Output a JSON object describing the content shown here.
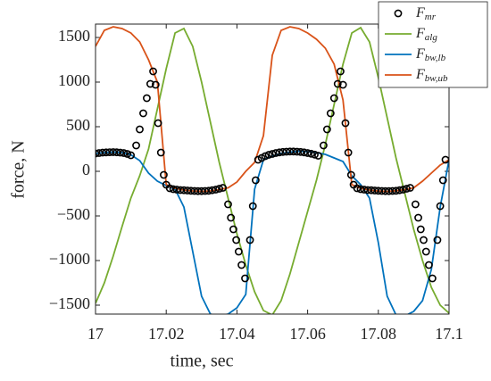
{
  "chart_data": {
    "type": "line",
    "xlabel": "time, sec",
    "ylabel": "force, N",
    "xlim": [
      17,
      17.1
    ],
    "ylim": [
      -1600,
      1650
    ],
    "xticks": [
      17,
      17.02,
      17.04,
      17.06,
      17.08,
      17.1
    ],
    "yticks": [
      {
        "value": -1500,
        "label": "−1500"
      },
      {
        "value": -1000,
        "label": "−1000"
      },
      {
        "value": -500,
        "label": "−500"
      },
      0,
      500,
      1000,
      1500
    ],
    "grid": false,
    "legend": "northeast",
    "x": [
      17,
      17.0025,
      17.005,
      17.0075,
      17.01,
      17.0125,
      17.015,
      17.0175,
      17.02,
      17.0225,
      17.025,
      17.0275,
      17.03,
      17.0325,
      17.035,
      17.0375,
      17.04,
      17.0425,
      17.045,
      17.0475,
      17.05,
      17.0525,
      17.055,
      17.0575,
      17.06,
      17.0625,
      17.065,
      17.0675,
      17.07,
      17.0725,
      17.075,
      17.0775,
      17.08,
      17.0825,
      17.085,
      17.0875,
      17.09,
      17.0925,
      17.095,
      17.0975,
      17.1
    ],
    "series": [
      {
        "name": "F_mr",
        "color": "#000000",
        "marker": "o",
        "x": [
          17,
          17.001,
          17.002,
          17.003,
          17.004,
          17.005,
          17.006,
          17.007,
          17.008,
          17.009,
          17.01,
          17.0115,
          17.0125,
          17.0135,
          17.0145,
          17.0155,
          17.0163,
          17.017,
          17.0177,
          17.0185,
          17.0193,
          17.02,
          17.021,
          17.022,
          17.023,
          17.024,
          17.025,
          17.026,
          17.027,
          17.028,
          17.029,
          17.03,
          17.031,
          17.032,
          17.033,
          17.034,
          17.035,
          17.036,
          17.0375,
          17.0383,
          17.039,
          17.0398,
          17.0405,
          17.0413,
          17.0423,
          17.0437,
          17.0445,
          17.0453,
          17.046,
          17.047,
          17.048,
          17.049,
          17.05,
          17.051,
          17.052,
          17.053,
          17.054,
          17.055,
          17.056,
          17.057,
          17.058,
          17.059,
          17.06,
          17.061,
          17.062,
          17.063,
          17.0645,
          17.0655,
          17.0665,
          17.0675,
          17.0685,
          17.0693,
          17.07,
          17.0707,
          17.0715,
          17.0723,
          17.073,
          17.074,
          17.075,
          17.076,
          17.077,
          17.078,
          17.079,
          17.08,
          17.081,
          17.082,
          17.083,
          17.084,
          17.085,
          17.086,
          17.087,
          17.088,
          17.089,
          17.0905,
          17.0913,
          17.092,
          17.0928,
          17.0935,
          17.0943,
          17.0953,
          17.0967,
          17.0975,
          17.0983,
          17.099
        ],
        "values": [
          200,
          205,
          210,
          212,
          214,
          215,
          213,
          210,
          205,
          195,
          180,
          290,
          470,
          650,
          820,
          980,
          1120,
          970,
          540,
          210,
          -40,
          -150,
          -190,
          -200,
          -205,
          -210,
          -212,
          -215,
          -218,
          -220,
          -222,
          -222,
          -220,
          -218,
          -212,
          -205,
          -195,
          -185,
          -370,
          -520,
          -650,
          -770,
          -900,
          -1050,
          -1200,
          -770,
          -390,
          -100,
          130,
          150,
          170,
          185,
          195,
          205,
          212,
          217,
          220,
          222,
          222,
          220,
          217,
          212,
          205,
          197,
          187,
          175,
          290,
          470,
          650,
          820,
          980,
          1120,
          970,
          540,
          210,
          -40,
          -150,
          -190,
          -200,
          -205,
          -210,
          -212,
          -215,
          -218,
          -220,
          -222,
          -222,
          -220,
          -218,
          -212,
          -205,
          -195,
          -185,
          -370,
          -520,
          -650,
          -770,
          -900,
          -1050,
          -1200,
          -770,
          -390,
          -100,
          130
        ]
      },
      {
        "name": "F_alg",
        "color": "#77ac30",
        "values": [
          -1480,
          -1250,
          -950,
          -620,
          -300,
          -50,
          250,
          700,
          1150,
          1550,
          1600,
          1400,
          1000,
          550,
          100,
          -300,
          -700,
          -1050,
          -1350,
          -1560,
          -1610,
          -1450,
          -1150,
          -800,
          -450,
          -100,
          300,
          750,
          1200,
          1550,
          1610,
          1450,
          1050,
          600,
          150,
          -250,
          -650,
          -1000,
          -1300,
          -1500,
          -1590
        ]
      },
      {
        "name": "F_bw,lb",
        "color": "#0072bd",
        "values": [
          200,
          210,
          215,
          210,
          185,
          120,
          -20,
          -110,
          -160,
          -200,
          -400,
          -900,
          -1400,
          -1600,
          -1620,
          -1600,
          -1530,
          -1380,
          -200,
          130,
          170,
          200,
          215,
          225,
          220,
          210,
          190,
          150,
          110,
          -50,
          -150,
          -300,
          -800,
          -1400,
          -1610,
          -1620,
          -1570,
          -1450,
          -1100,
          -400,
          130
        ]
      },
      {
        "name": "F_bw,ub",
        "color": "#d95319",
        "values": [
          1400,
          1580,
          1620,
          1600,
          1550,
          1450,
          1250,
          1000,
          -150,
          -190,
          -210,
          -220,
          -225,
          -220,
          -205,
          -185,
          -120,
          0,
          100,
          400,
          1300,
          1580,
          1620,
          1600,
          1550,
          1480,
          1380,
          1200,
          800,
          -150,
          -190,
          -210,
          -222,
          -225,
          -218,
          -205,
          -185,
          -110,
          -20,
          70,
          130
        ]
      }
    ]
  }
}
